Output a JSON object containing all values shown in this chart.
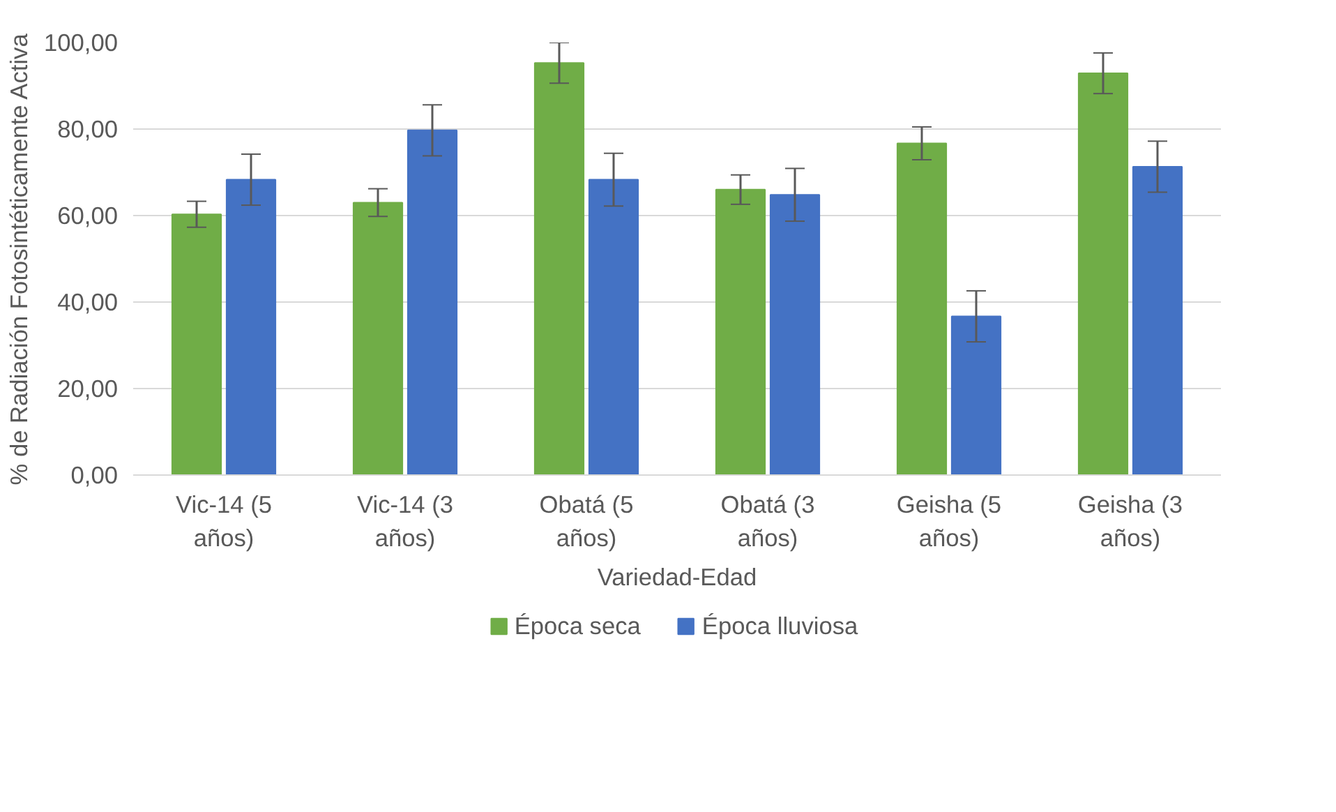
{
  "chart_data": {
    "type": "bar",
    "xlabel": "Variedad-Edad",
    "ylabel": "% de Radiación Fotosintéticamente Activa",
    "categories": [
      "Vic-14 (5 años)",
      "Vic-14 (3 años)",
      "Obatá (5 años)",
      "Obatá (3 años)",
      "Geisha (5 años)",
      "Geisha (3 años)"
    ],
    "series": [
      {
        "name": "Época seca",
        "color": "#70ad47",
        "values": [
          60.3,
          63.0,
          95.3,
          66.0,
          76.7,
          92.9
        ],
        "errors": [
          3.0,
          3.2,
          4.7,
          3.4,
          3.8,
          4.7
        ]
      },
      {
        "name": "Época lluviosa",
        "color": "#4472c4",
        "values": [
          68.3,
          79.7,
          68.3,
          64.8,
          36.7,
          71.3
        ],
        "errors": [
          5.9,
          5.9,
          6.1,
          6.1,
          5.9,
          5.9
        ]
      }
    ],
    "ylim": [
      0,
      100
    ],
    "yticks": [
      {
        "value": 0,
        "label": "0,00"
      },
      {
        "value": 20,
        "label": "20,00"
      },
      {
        "value": 40,
        "label": "40,00"
      },
      {
        "value": 60,
        "label": "60,00"
      },
      {
        "value": 80,
        "label": "80,00"
      },
      {
        "value": 100,
        "label": "100,00"
      }
    ],
    "grid": "y",
    "legend": "bottom"
  }
}
